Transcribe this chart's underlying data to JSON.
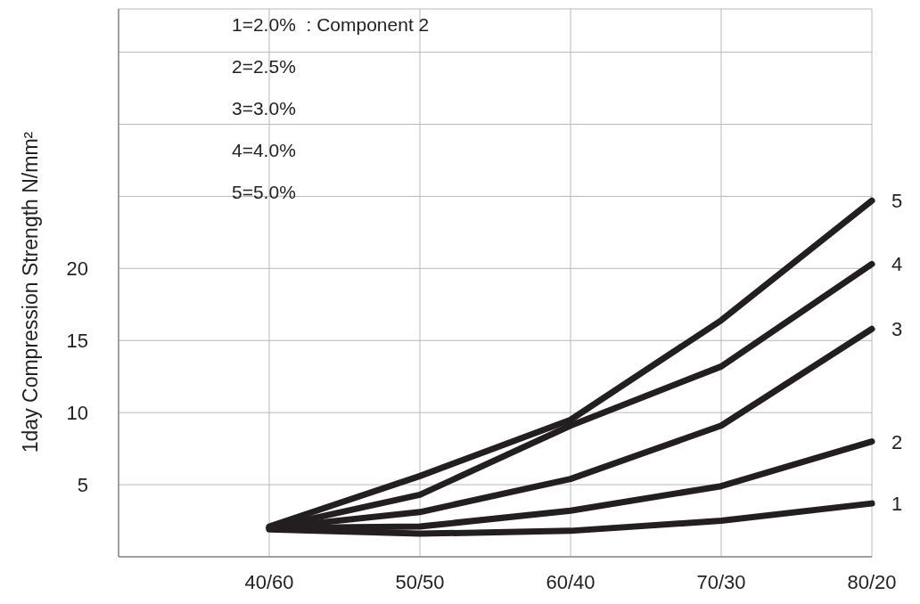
{
  "chart_data": {
    "type": "line",
    "ylabel": "1day Compression Strength N/mm²",
    "annotations": [
      "1=2.0%  : Component 2",
      "2=2.5%",
      "3=3.0%",
      "4=4.0%",
      "5=5.0%"
    ],
    "categories": [
      null,
      "40/60",
      "50/50",
      "60/40",
      "70/30",
      "80/20"
    ],
    "ylim": [
      0,
      38
    ],
    "yticks": [
      {
        "value": 0,
        "label": null
      },
      5,
      10,
      15,
      20,
      {
        "value": 25,
        "label": null
      },
      {
        "value": 30,
        "label": null
      },
      {
        "value": 35,
        "label": null
      }
    ],
    "grid": true,
    "marker": "none",
    "line_style": "solid",
    "series": [
      {
        "name": "1",
        "color": "#231f20",
        "values": [
          null,
          1.9,
          1.6,
          1.8,
          2.5,
          3.7
        ]
      },
      {
        "name": "2",
        "color": "#231f20",
        "values": [
          null,
          2.0,
          2.1,
          3.2,
          4.9,
          8.0
        ]
      },
      {
        "name": "3",
        "color": "#231f20",
        "values": [
          null,
          2.0,
          3.1,
          5.4,
          9.1,
          15.8
        ]
      },
      {
        "name": "4",
        "color": "#231f20",
        "values": [
          null,
          2.0,
          4.3,
          9.1,
          13.2,
          20.3
        ]
      },
      {
        "name": "5",
        "color": "#231f20",
        "values": [
          null,
          2.1,
          5.6,
          9.5,
          16.4,
          24.7
        ]
      }
    ]
  }
}
